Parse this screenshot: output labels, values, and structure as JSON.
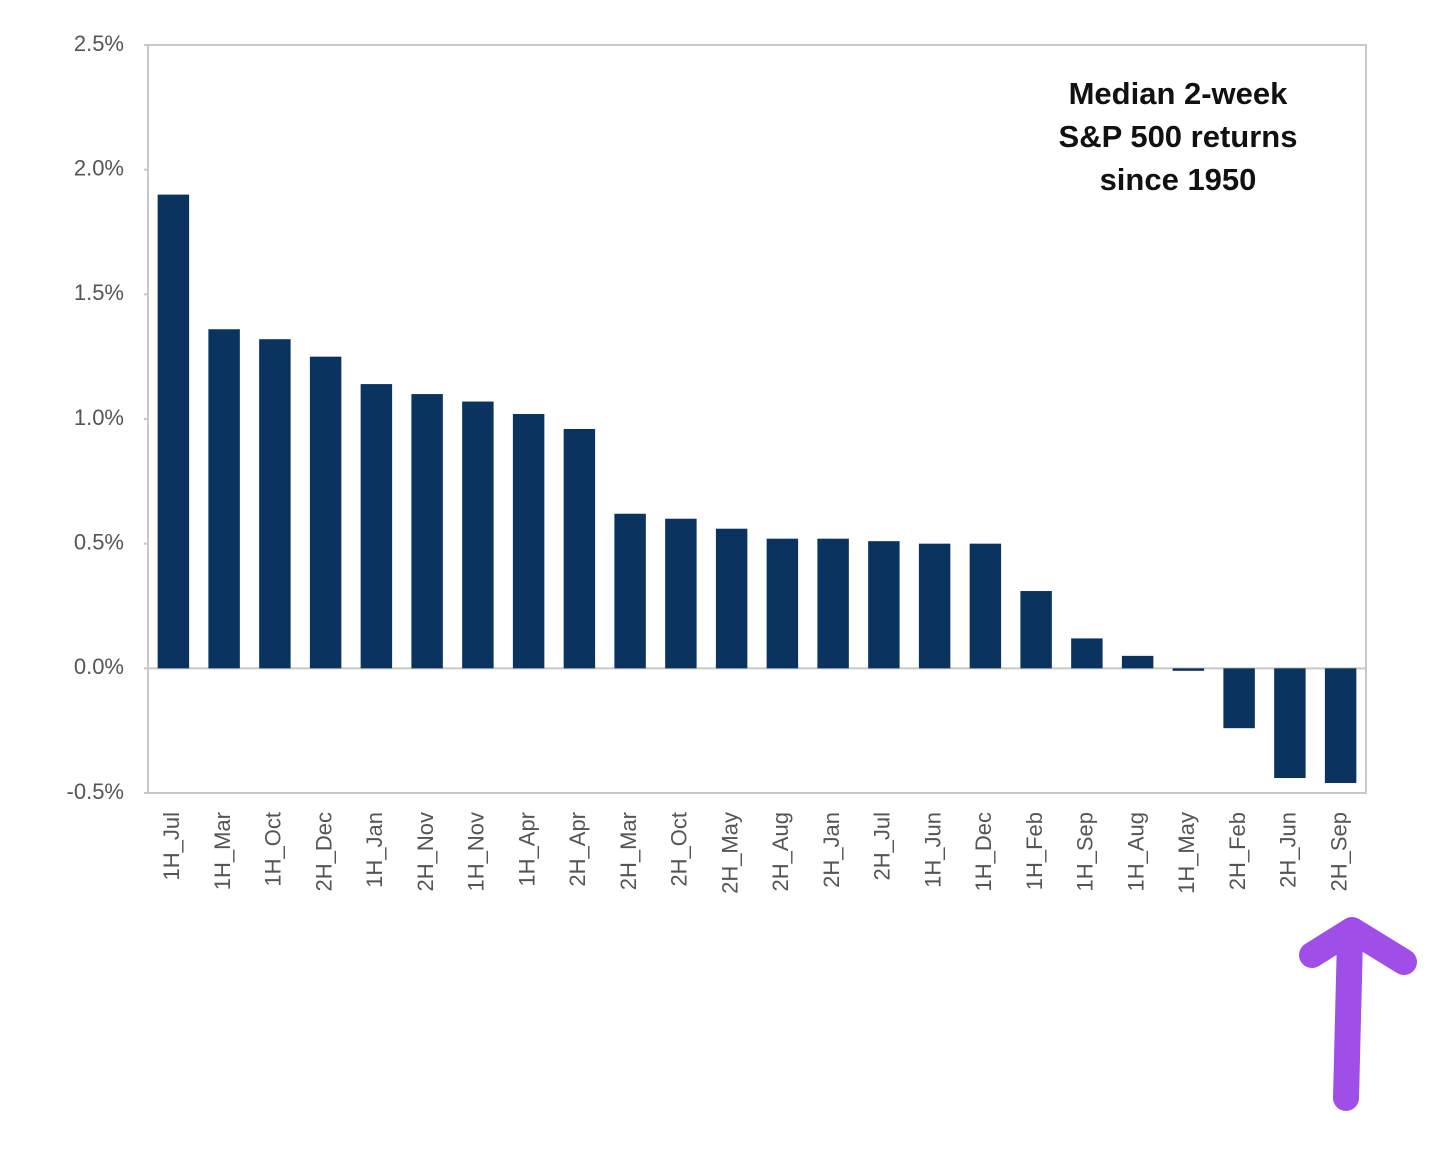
{
  "chart_data": {
    "type": "bar",
    "title": [
      "Median 2-week",
      "S&P 500 returns",
      "since 1950"
    ],
    "categories": [
      "1H_Jul",
      "1H_Mar",
      "1H_Oct",
      "2H_Dec",
      "1H_Jan",
      "2H_Nov",
      "1H_Nov",
      "1H_Apr",
      "2H_Apr",
      "2H_Mar",
      "2H_Oct",
      "2H_May",
      "2H_Aug",
      "2H_Jan",
      "2H_Jul",
      "1H_Jun",
      "1H_Dec",
      "1H_Feb",
      "1H_Sep",
      "1H_Aug",
      "1H_May",
      "2H_Feb",
      "2H_Jun",
      "2H_Sep"
    ],
    "values": [
      1.9,
      1.36,
      1.32,
      1.25,
      1.14,
      1.1,
      1.07,
      1.02,
      0.96,
      0.62,
      0.6,
      0.56,
      0.52,
      0.52,
      0.51,
      0.5,
      0.5,
      0.31,
      0.12,
      0.05,
      -0.01,
      -0.24,
      -0.44,
      -0.46
    ],
    "color": "#0b3360",
    "ylim": [
      -0.5,
      2.5
    ],
    "yticks": [
      {
        "value": -0.5,
        "label": "-0.5%"
      },
      {
        "value": 0,
        "label": "0.0%"
      },
      {
        "value": 0.5,
        "label": "0.5%"
      },
      {
        "value": 1,
        "label": "1.0%"
      },
      {
        "value": 1.5,
        "label": "1.5%"
      },
      {
        "value": 2,
        "label": "2.0%"
      },
      {
        "value": 2.5,
        "label": "2.5%"
      }
    ],
    "grid": false
  }
}
